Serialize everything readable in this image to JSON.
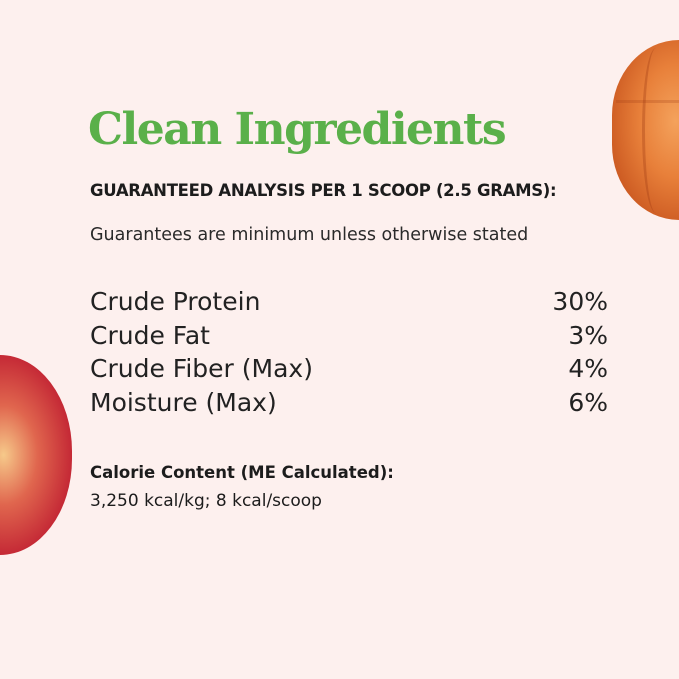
{
  "title": "Clean Ingredients",
  "subtitle": "GUARANTEED ANALYSIS PER 1 SCOOP (2.5 GRAMS):",
  "note": "Guarantees are minimum unless otherwise stated",
  "analysis": [
    {
      "label": "Crude Protein",
      "value": "30%"
    },
    {
      "label": "Crude Fat",
      "value": "3%"
    },
    {
      "label": "Crude Fiber (Max)",
      "value": "4%"
    },
    {
      "label": "Moisture (Max)",
      "value": "6%"
    }
  ],
  "calorie": {
    "heading": "Calorie Content (ME Calculated):",
    "value": "3,250 kcal/kg; 8 kcal/scoop"
  },
  "colors": {
    "accent": "#5ab04a",
    "background": "#fdf0ee"
  },
  "images": [
    "pumpkin",
    "apple"
  ]
}
